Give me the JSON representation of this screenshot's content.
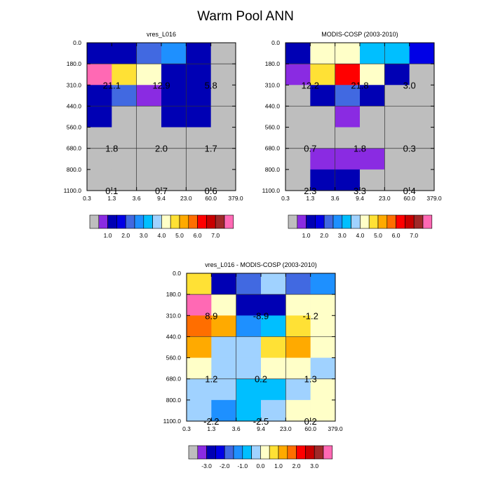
{
  "figure": {
    "title": "Warm Pool ANN"
  },
  "palette": {
    "gray": "#bebebe",
    "abs": [
      "#bebebe",
      "#8a2be2",
      "#0000b4",
      "#0000e6",
      "#4169e1",
      "#1e90ff",
      "#00bfff",
      "#a0d2ff",
      "#ffffc8",
      "#ffe135",
      "#ffaa00",
      "#ff6e00",
      "#ff0000",
      "#c80000",
      "#a02828",
      "#ff69b4"
    ],
    "diff": [
      "#bebebe",
      "#8a2be2",
      "#0000b4",
      "#0000e6",
      "#4169e1",
      "#1e90ff",
      "#00bfff",
      "#a0d2ff",
      "#ffffc8",
      "#ffe135",
      "#ffaa00",
      "#ff6e00",
      "#ff0000",
      "#c80000",
      "#a02828",
      "#ff69b4"
    ]
  },
  "chart_data": [
    {
      "type": "heatmap",
      "title": "vres_L016",
      "x_ticks": [
        "0.3",
        "1.3",
        "3.6",
        "9.4",
        "23.0",
        "60.0",
        "379.0"
      ],
      "y_ticks": [
        "0.0",
        "180.0",
        "310.0",
        "440.0",
        "560.0",
        "680.0",
        "800.0",
        "1100.0"
      ],
      "cells": [
        [
          2,
          2,
          4,
          5,
          2,
          0
        ],
        [
          15,
          9,
          8,
          2,
          2,
          0
        ],
        [
          2,
          4,
          1,
          2,
          2,
          0
        ],
        [
          2,
          0,
          0,
          2,
          2,
          0
        ],
        [
          0,
          0,
          0,
          0,
          0,
          0
        ],
        [
          0,
          0,
          0,
          0,
          0,
          0
        ],
        [
          0,
          0,
          0,
          0,
          0,
          0
        ]
      ],
      "labels": [
        {
          "row_group": [
            1,
            2
          ],
          "col_group": [
            0,
            1
          ],
          "text": "21.1"
        },
        {
          "row_group": [
            1,
            2
          ],
          "col_group": [
            2,
            3
          ],
          "text": "12.9"
        },
        {
          "row_group": [
            1,
            2
          ],
          "col_group": [
            4,
            5
          ],
          "text": "5.8"
        },
        {
          "row_group": [
            4,
            5
          ],
          "col_group": [
            0,
            1
          ],
          "text": "1.8"
        },
        {
          "row_group": [
            4,
            5
          ],
          "col_group": [
            2,
            3
          ],
          "text": "2.0"
        },
        {
          "row_group": [
            4,
            5
          ],
          "col_group": [
            4,
            5
          ],
          "text": "1.7"
        },
        {
          "row_group": [
            6,
            7
          ],
          "col_group": [
            0,
            1
          ],
          "text": "0.1"
        },
        {
          "row_group": [
            6,
            7
          ],
          "col_group": [
            2,
            3
          ],
          "text": "0.7"
        },
        {
          "row_group": [
            6,
            7
          ],
          "col_group": [
            4,
            5
          ],
          "text": "0.6"
        }
      ],
      "colorbar": {
        "palette": "abs",
        "tick_labels": [
          "1.0",
          "2.0",
          "3.0",
          "4.0",
          "5.0",
          "6.0",
          "7.0"
        ]
      }
    },
    {
      "type": "heatmap",
      "title": "MODIS-COSP (2003-2010)",
      "x_ticks": [
        "0.3",
        "1.3",
        "3.6",
        "9.4",
        "23.0",
        "60.0",
        "379.0"
      ],
      "y_ticks": [
        "0.0",
        "180.0",
        "310.0",
        "440.0",
        "560.0",
        "680.0",
        "800.0",
        "1100.0"
      ],
      "cells": [
        [
          2,
          8,
          8,
          6,
          6,
          3
        ],
        [
          1,
          9,
          12,
          8,
          2,
          0
        ],
        [
          0,
          2,
          4,
          2,
          0,
          0
        ],
        [
          0,
          0,
          1,
          0,
          0,
          0
        ],
        [
          0,
          0,
          0,
          0,
          0,
          0
        ],
        [
          0,
          1,
          1,
          1,
          0,
          0
        ],
        [
          0,
          2,
          2,
          0,
          0,
          0
        ]
      ],
      "labels": [
        {
          "row_group": [
            1,
            2
          ],
          "col_group": [
            0,
            1
          ],
          "text": "12.2"
        },
        {
          "row_group": [
            1,
            2
          ],
          "col_group": [
            2,
            3
          ],
          "text": "21.8"
        },
        {
          "row_group": [
            1,
            2
          ],
          "col_group": [
            4,
            5
          ],
          "text": "3.0"
        },
        {
          "row_group": [
            4,
            5
          ],
          "col_group": [
            0,
            1
          ],
          "text": "0.7"
        },
        {
          "row_group": [
            4,
            5
          ],
          "col_group": [
            2,
            3
          ],
          "text": "1.8"
        },
        {
          "row_group": [
            4,
            5
          ],
          "col_group": [
            4,
            5
          ],
          "text": "0.3"
        },
        {
          "row_group": [
            6,
            7
          ],
          "col_group": [
            0,
            1
          ],
          "text": "2.3"
        },
        {
          "row_group": [
            6,
            7
          ],
          "col_group": [
            2,
            3
          ],
          "text": "3.3"
        },
        {
          "row_group": [
            6,
            7
          ],
          "col_group": [
            4,
            5
          ],
          "text": "0.4"
        }
      ],
      "colorbar": {
        "palette": "abs",
        "tick_labels": [
          "1.0",
          "2.0",
          "3.0",
          "4.0",
          "5.0",
          "6.0",
          "7.0"
        ]
      }
    },
    {
      "type": "heatmap",
      "title": "vres_L016 - MODIS-COSP (2003-2010)",
      "x_ticks": [
        "0.3",
        "1.3",
        "3.6",
        "9.4",
        "23.0",
        "60.0",
        "379.0"
      ],
      "y_ticks": [
        "0.0",
        "180.0",
        "310.0",
        "440.0",
        "560.0",
        "680.0",
        "800.0",
        "1100.0"
      ],
      "cells": [
        [
          9,
          2,
          4,
          7,
          4,
          5
        ],
        [
          15,
          8,
          2,
          2,
          8,
          8
        ],
        [
          11,
          10,
          5,
          6,
          9,
          8
        ],
        [
          10,
          7,
          7,
          9,
          10,
          8
        ],
        [
          8,
          7,
          7,
          8,
          8,
          7
        ],
        [
          7,
          7,
          6,
          6,
          7,
          8
        ],
        [
          7,
          5,
          6,
          7,
          8,
          8
        ]
      ],
      "labels": [
        {
          "row_group": [
            1,
            2
          ],
          "col_group": [
            0,
            1
          ],
          "text": "8.9"
        },
        {
          "row_group": [
            1,
            2
          ],
          "col_group": [
            2,
            3
          ],
          "text": "-8.9"
        },
        {
          "row_group": [
            1,
            2
          ],
          "col_group": [
            4,
            5
          ],
          "text": "-1.2"
        },
        {
          "row_group": [
            4,
            5
          ],
          "col_group": [
            0,
            1
          ],
          "text": "1.2"
        },
        {
          "row_group": [
            4,
            5
          ],
          "col_group": [
            2,
            3
          ],
          "text": "0.2"
        },
        {
          "row_group": [
            4,
            5
          ],
          "col_group": [
            4,
            5
          ],
          "text": "1.3"
        },
        {
          "row_group": [
            6,
            7
          ],
          "col_group": [
            0,
            1
          ],
          "text": "-2.2"
        },
        {
          "row_group": [
            6,
            7
          ],
          "col_group": [
            2,
            3
          ],
          "text": "-2.5"
        },
        {
          "row_group": [
            6,
            7
          ],
          "col_group": [
            4,
            5
          ],
          "text": "0.2"
        }
      ],
      "colorbar": {
        "palette": "diff",
        "tick_labels": [
          "-3.0",
          "-2.0",
          "-1.0",
          "0.0",
          "1.0",
          "2.0",
          "3.0"
        ]
      }
    }
  ]
}
